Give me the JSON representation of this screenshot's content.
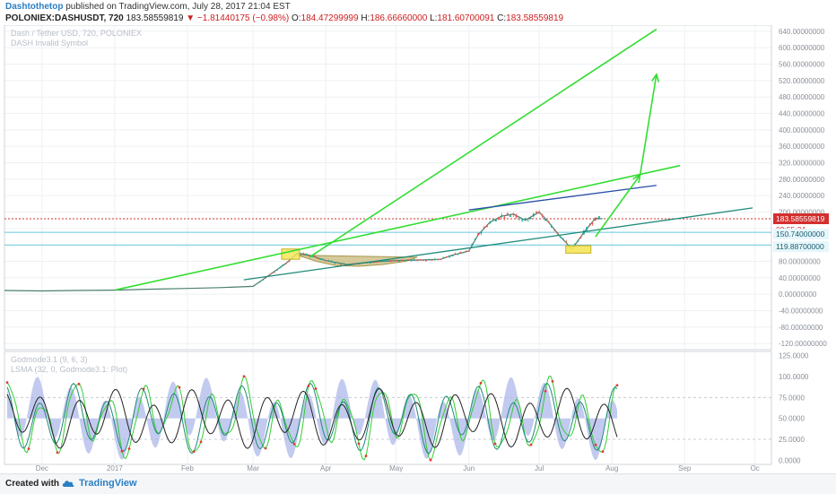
{
  "header": {
    "author": "Dashtothetop",
    "published": "published on TradingView.com, July 28, 2017 21:04 EST",
    "symbol": "POLONIEX:DASHUSDT, 720",
    "last": "183.58559819",
    "change": "▼ −1.81440175 (−0.98%)",
    "o_label": "O:",
    "o": "184.47299999",
    "h_label": "H:",
    "h": "186.66660000",
    "l_label": "L:",
    "l": "181.60700091",
    "c_label": "C:",
    "c": "183.58559819"
  },
  "legend": {
    "line1": "Dash / Tether USD, 720, POLONIEX",
    "line2": "DASH Invalid Symbol",
    "osc1": "Godmode3.1 (9, 6, 3)",
    "osc2": "LSMA (32, 0, Godmode3.1: Plot)"
  },
  "footer": {
    "created": "Created with",
    "brand": "TradingView"
  },
  "colors": {
    "green_line": "#33dd33",
    "blue_line": "#2a4fa8",
    "teal_line": "#1e8a7a",
    "hline": "#66c6dd",
    "last_price": "#d32f2f",
    "box": "#f5e65a",
    "cup": "#c8b878",
    "osc_fill": "#aab4e8",
    "up_candle": "#26a69a",
    "down_candle": "#ef5350"
  },
  "chart_data": {
    "type": "line",
    "title": "Dash / Tether USD, 720, POLONIEX",
    "x_tick_labels": [
      "Dec",
      "2017",
      "Feb",
      "Mar",
      "Apr",
      "May",
      "Jun",
      "Jul",
      "Aug",
      "Sep",
      "Oc"
    ],
    "y_tick_labels": [
      "-120.00000000",
      "-80.00000000",
      "-40.00000000",
      "0.00000000",
      "40.00000000",
      "80.00000000",
      "120.00000000",
      "160.00000000",
      "200.00000000",
      "240.00000000",
      "280.00000000",
      "320.00000000",
      "360.00000000",
      "400.00000000",
      "440.00000000",
      "480.00000000",
      "520.00000000",
      "560.00000000",
      "600.00000000",
      "640.00000000"
    ],
    "ylim": [
      -135,
      655
    ],
    "price_labels": {
      "last": "183.58559819",
      "countdown": "09:55:34",
      "level1": "150.74000000",
      "level2": "119.88700000"
    },
    "osc_tick_labels": [
      "0.0000",
      "25.0000",
      "50.0000",
      "75.0000",
      "100.0000",
      "125.0000"
    ],
    "osc_ylim": [
      -5,
      130
    ],
    "series": [
      {
        "x": [
          "2016-11-15",
          "2016-12-01",
          "2016-12-15",
          "2017-01-01",
          "2017-01-15",
          "2017-02-01",
          "2017-02-15",
          "2017-03-01",
          "2017-03-05",
          "2017-03-10",
          "2017-03-15",
          "2017-03-20",
          "2017-03-25",
          "2017-04-01",
          "2017-04-10",
          "2017-04-20",
          "2017-05-01",
          "2017-05-10",
          "2017-05-20",
          "2017-05-25",
          "2017-06-01",
          "2017-06-05",
          "2017-06-10",
          "2017-06-15",
          "2017-06-20",
          "2017-06-25",
          "2017-07-01",
          "2017-07-05",
          "2017-07-10",
          "2017-07-15",
          "2017-07-20",
          "2017-07-25",
          "2017-07-28"
        ],
        "values": [
          9,
          8,
          9,
          10,
          12,
          14,
          16,
          19,
          35,
          55,
          75,
          100,
          95,
          82,
          72,
          78,
          82,
          83,
          85,
          95,
          105,
          145,
          175,
          190,
          195,
          180,
          200,
          175,
          140,
          110,
          150,
          185,
          183.6
        ]
      }
    ],
    "annotations": {
      "horizontal_lines": [
        183.59,
        150.74,
        119.887
      ],
      "trendlines": [
        {
          "x": [
            "2017-01-01",
            "2017-08-30"
          ],
          "y": [
            10,
            313
          ]
        },
        {
          "x": [
            "2017-03-25",
            "2017-08-20"
          ],
          "y": [
            90,
            645
          ]
        },
        {
          "x": [
            "2017-02-25",
            "2017-09-30"
          ],
          "y": [
            35,
            210
          ]
        },
        {
          "x": [
            "2017-06-01",
            "2017-08-20"
          ],
          "y": [
            205,
            265
          ]
        }
      ],
      "arrows": [
        {
          "x": [
            "2017-07-25",
            "2017-08-13"
          ],
          "y": [
            140,
            290
          ]
        },
        {
          "x": [
            "2017-08-13",
            "2017-08-20"
          ],
          "y": [
            290,
            535
          ]
        }
      ]
    }
  }
}
